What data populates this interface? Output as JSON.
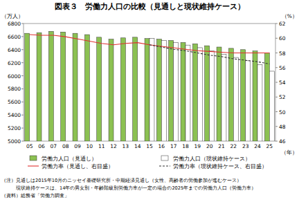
{
  "chart_data": {
    "type": "bar",
    "title": "図表３　労働力人口の比較（見通しと現状維持ケース）",
    "y_label": "（万人）",
    "y2_label": "（%）",
    "x_label": "（年）",
    "categories": [
      "05",
      "06",
      "07",
      "08",
      "09",
      "10",
      "11",
      "12",
      "13",
      "14",
      "15",
      "16",
      "17",
      "18",
      "19",
      "20",
      "21",
      "22",
      "23",
      "24",
      "25"
    ],
    "series": [
      {
        "name": "労働力人口（見通し）",
        "type": "bar",
        "color": "#8cc152",
        "values": [
          6650,
          6660,
          6680,
          6670,
          6650,
          6630,
          6590,
          6560,
          6580,
          6590,
          6570,
          6560,
          6540,
          6510,
          6490,
          6460,
          6440,
          6420,
          6400,
          6380,
          6350
        ]
      },
      {
        "name": "労働力人口（現状維持ケース）",
        "type": "bar",
        "color": "#ffffff",
        "values": [
          null,
          null,
          null,
          null,
          null,
          null,
          null,
          null,
          null,
          null,
          6570,
          6540,
          6510,
          6470,
          6430,
          6380,
          6330,
          6280,
          6230,
          6170,
          6070
        ]
      },
      {
        "name": "労働力率（見通し、右目盛）",
        "type": "line",
        "axis": "y2",
        "color": "#e03030",
        "line_style": "solid",
        "values": [
          60.5,
          60.4,
          60.4,
          60.2,
          59.9,
          59.6,
          59.3,
          59.1,
          59.3,
          59.4,
          59.1,
          58.9,
          58.7,
          58.5,
          58.3,
          58.2,
          58.1,
          58.0,
          58.0,
          58.0,
          58.0
        ]
      },
      {
        "name": "労働力率（現状維持ケース、右目盛）",
        "type": "line",
        "axis": "y2",
        "color": "#333333",
        "line_style": "dashed",
        "values": [
          null,
          null,
          null,
          null,
          null,
          null,
          null,
          null,
          null,
          null,
          59.1,
          58.8,
          58.5,
          58.3,
          58.0,
          57.7,
          57.5,
          57.2,
          57.0,
          56.8,
          56.5
        ]
      }
    ],
    "ylim": [
      5000,
      6800
    ],
    "yticks": [
      5000,
      5200,
      5400,
      5600,
      5800,
      6000,
      6200,
      6400,
      6600,
      6800
    ],
    "y2lim": [
      46,
      62
    ],
    "y2ticks": [
      46,
      48,
      50,
      52,
      54,
      56,
      58,
      60,
      62
    ],
    "grid": false,
    "legend": "bottom",
    "notes": [
      "（注）見通しは2015年10月のニッセイ基礎研究所・中期経済見通し（女性、高齢者の労働参加が進むケース）",
      "　　　現状維持ケースは、14年の男女別・年齢階級別労働力率が一定の場合の2025年までの労働力人口（労働力率）",
      "（資料）総務省「労働力調査」"
    ]
  }
}
